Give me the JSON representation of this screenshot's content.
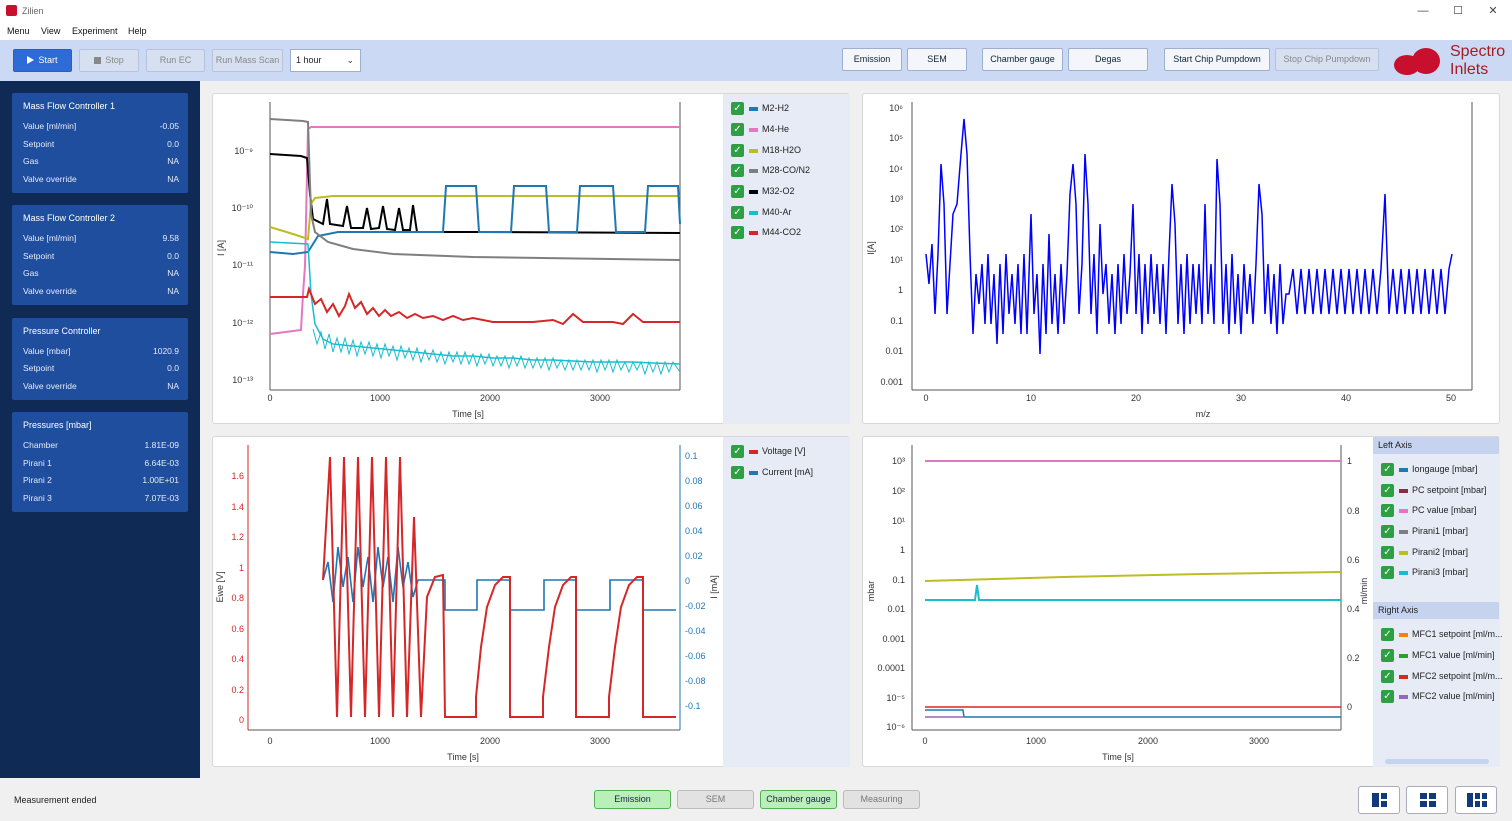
{
  "window": {
    "title": "Zilien"
  },
  "menu": [
    "Menu",
    "View",
    "Experiment",
    "Help"
  ],
  "toolbar": {
    "start": "Start",
    "stop": "Stop",
    "run_ec": "Run EC",
    "run_mass_scan": "Run Mass Scan",
    "duration": "1 hour",
    "emission": "Emission",
    "sem": "SEM",
    "chamber_gauge": "Chamber gauge",
    "degas": "Degas",
    "start_pumpdown": "Start Chip Pumpdown",
    "stop_pumpdown": "Stop Chip Pumpdown",
    "logo_line1": "Spectro",
    "logo_line2": "Inlets"
  },
  "sidebar": {
    "mfc1": {
      "title": "Mass Flow Controller 1",
      "rows": [
        [
          "Value [ml/min]",
          "-0.05"
        ],
        [
          "Setpoint",
          "0.0"
        ],
        [
          "Gas",
          "NA"
        ],
        [
          "Valve override",
          "NA"
        ]
      ]
    },
    "mfc2": {
      "title": "Mass Flow Controller 2",
      "rows": [
        [
          "Value [ml/min]",
          "9.58"
        ],
        [
          "Setpoint",
          "0.0"
        ],
        [
          "Gas",
          "NA"
        ],
        [
          "Valve override",
          "NA"
        ]
      ]
    },
    "pc": {
      "title": "Pressure Controller",
      "rows": [
        [
          "Value [mbar]",
          "1020.9"
        ],
        [
          "Setpoint",
          "0.0"
        ],
        [
          "Valve override",
          "NA"
        ]
      ]
    },
    "pressures": {
      "title": "Pressures [mbar]",
      "rows": [
        [
          "Chamber",
          "1.81E-09"
        ],
        [
          "Pirani 1",
          "6.64E-03"
        ],
        [
          "Pirani 2",
          "1.00E+01"
        ],
        [
          "Pirani 3",
          "7.07E-03"
        ]
      ]
    }
  },
  "colors": {
    "h2": "#1f77b4",
    "he": "#e377c2",
    "h2o": "#bcbd22",
    "co": "#7f7f7f",
    "o2": "#000000",
    "ar": "#17becf",
    "co2": "#d62728",
    "blue": "#0000ff"
  },
  "chart_data": [
    {
      "type": "line",
      "xlabel": "Time [s]",
      "ylabel": "I [A]",
      "yscale": "log",
      "x_ticks": [
        0,
        1000,
        2000,
        3000
      ],
      "y_ticks": [
        "10⁻⁹",
        "10⁻¹⁰",
        "10⁻¹¹",
        "10⁻¹²",
        "10⁻¹³"
      ],
      "series": [
        {
          "name": "M2-H2",
          "color": "#1f77b4"
        },
        {
          "name": "M4-He",
          "color": "#e377c2"
        },
        {
          "name": "M18-H2O",
          "color": "#bcbd22"
        },
        {
          "name": "M28-CO/N2",
          "color": "#7f7f7f"
        },
        {
          "name": "M32-O2",
          "color": "#000000"
        },
        {
          "name": "M40-Ar",
          "color": "#17becf"
        },
        {
          "name": "M44-CO2",
          "color": "#d62728"
        }
      ]
    },
    {
      "type": "line",
      "xlabel": "m/z",
      "ylabel": "I[A]",
      "yscale": "log",
      "x_ticks": [
        0,
        10,
        20,
        30,
        40,
        50
      ],
      "y_ticks": [
        "10⁶",
        "10⁵",
        "10⁴",
        "10³",
        "10²",
        "10¹",
        "1",
        "0.1",
        "0.01",
        "0.001"
      ],
      "peaks": [
        [
          2,
          5000
        ],
        [
          4,
          1000000
        ],
        [
          14,
          5000
        ],
        [
          16,
          10000
        ],
        [
          17,
          3000
        ],
        [
          18,
          20000
        ],
        [
          20,
          2000
        ],
        [
          28,
          30000
        ],
        [
          30,
          2000
        ],
        [
          32,
          2000
        ],
        [
          44,
          1000
        ]
      ]
    },
    {
      "type": "line",
      "xlabel": "Time [s]",
      "ylabel": "Ewe [V]",
      "y2label": "I [mA]",
      "x_ticks": [
        0,
        1000,
        2000,
        3000
      ],
      "y_ticks": [
        "1.6",
        "1.4",
        "1.2",
        "1",
        "0.8",
        "0.6",
        "0.4",
        "0.2",
        "0"
      ],
      "y2_ticks": [
        "0.1",
        "0.08",
        "0.06",
        "0.04",
        "0.02",
        "0",
        "-0.02",
        "-0.04",
        "-0.06",
        "-0.08",
        "-0.1"
      ],
      "series": [
        {
          "name": "Voltage [V]",
          "color": "#d62728"
        },
        {
          "name": "Current [mA]",
          "color": "#1f77b4"
        }
      ]
    },
    {
      "type": "line",
      "xlabel": "Time [s]",
      "ylabel": "mbar",
      "y2label": "ml/min",
      "x_ticks": [
        0,
        1000,
        2000,
        3000
      ],
      "y_ticks": [
        "10³",
        "10²",
        "10¹",
        "1",
        "0.1",
        "0.01",
        "0.001",
        "0.0001",
        "10⁻⁵",
        "10⁻⁶"
      ],
      "y2_ticks": [
        "1",
        "0.8",
        "0.6",
        "0.4",
        "0.2",
        "0"
      ],
      "left_axis_title": "Left Axis",
      "right_axis_title": "Right Axis",
      "left_series": [
        {
          "name": "Iongauge [mbar]",
          "color": "#1f77b4"
        },
        {
          "name": "PC setpoint [mbar]",
          "color": "#8c2d3b"
        },
        {
          "name": "PC value [mbar]",
          "color": "#e377c2"
        },
        {
          "name": "Pirani1 [mbar]",
          "color": "#7f7f7f"
        },
        {
          "name": "Pirani2 [mbar]",
          "color": "#bcbd22"
        },
        {
          "name": "Pirani3 [mbar]",
          "color": "#17becf"
        }
      ],
      "right_series": [
        {
          "name": "MFC1 setpoint [ml/m...",
          "color": "#ff7f0e"
        },
        {
          "name": "MFC1 value [ml/min]",
          "color": "#2ca02c"
        },
        {
          "name": "MFC2 setpoint [ml/m...",
          "color": "#d62728"
        },
        {
          "name": "MFC2 value [ml/min]",
          "color": "#9467bd"
        }
      ]
    }
  ],
  "status": {
    "text": "Measurement ended",
    "buttons": [
      "Emission",
      "SEM",
      "Chamber gauge",
      "Measuring"
    ]
  }
}
